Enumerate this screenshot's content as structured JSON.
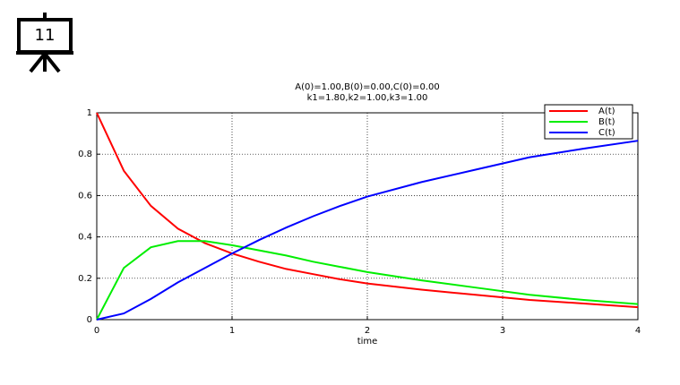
{
  "slide_number": "11",
  "chart_data": {
    "type": "line",
    "title": "A(0)=1.00,B(0)=0.00,C(0)=0.00",
    "subtitle": "k1=1.80,k2=1.00,k3=1.00",
    "x_label": "time",
    "x": [
      0,
      0.2,
      0.4,
      0.6,
      0.8,
      1.0,
      1.2,
      1.4,
      1.6,
      1.8,
      2.0,
      2.4,
      2.8,
      3.2,
      3.6,
      4.0
    ],
    "series": [
      {
        "name": "A(t)",
        "color": "#ff0000",
        "values": [
          1,
          0.72,
          0.55,
          0.44,
          0.37,
          0.32,
          0.28,
          0.245,
          0.22,
          0.195,
          0.175,
          0.145,
          0.12,
          0.095,
          0.078,
          0.06
        ]
      },
      {
        "name": "B(t)",
        "color": "#00ee00",
        "values": [
          0,
          0.25,
          0.35,
          0.38,
          0.38,
          0.36,
          0.335,
          0.31,
          0.28,
          0.255,
          0.23,
          0.19,
          0.155,
          0.12,
          0.095,
          0.075
        ]
      },
      {
        "name": "C(t)",
        "color": "#0000ff",
        "values": [
          0,
          0.03,
          0.1,
          0.18,
          0.25,
          0.32,
          0.385,
          0.445,
          0.5,
          0.55,
          0.595,
          0.665,
          0.725,
          0.785,
          0.827,
          0.865
        ]
      }
    ],
    "xlim": [
      0,
      4
    ],
    "xticks": [
      0,
      1,
      2,
      3,
      4
    ],
    "ylim": [
      0,
      1
    ],
    "yticks": [
      0,
      0.2,
      0.4,
      0.6,
      0.8,
      1
    ],
    "grid": true,
    "legend": "upper right"
  }
}
